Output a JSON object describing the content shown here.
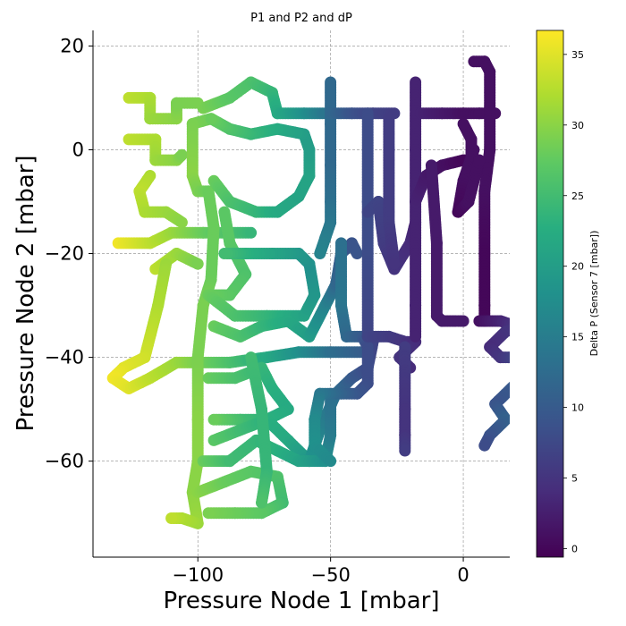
{
  "chart_data": {
    "type": "scatter",
    "title": "P1 and P2 and dP",
    "xlabel": "Pressure Node 1 [mbar]",
    "ylabel": "Pressure Node 2 [mbar]",
    "xlim": [
      -139.5,
      17.5
    ],
    "ylim": [
      -78.5,
      23
    ],
    "xticks": [
      -100,
      -50,
      0
    ],
    "xtick_labels": [
      "−100",
      "−50",
      "0"
    ],
    "yticks": [
      20,
      0,
      -20,
      -40,
      -60
    ],
    "ytick_labels": [
      "20",
      "0",
      "−20",
      "−40",
      "−60"
    ],
    "grid": true,
    "colorbar": {
      "label": "Delta P (Sensor 7 [mbar])",
      "range": [
        -0.6,
        36.7
      ],
      "ticks": [
        0,
        5,
        10,
        15,
        20,
        25,
        30,
        35
      ],
      "tick_labels": [
        "0",
        "5",
        "10",
        "15",
        "20",
        "25",
        "30",
        "35"
      ],
      "colormap": "viridis"
    },
    "paths": [
      {
        "points": [
          [
            -126,
            10
          ],
          [
            -118,
            10
          ],
          [
            -118,
            6
          ],
          [
            -108,
            6
          ],
          [
            -108,
            9
          ],
          [
            -100,
            9
          ]
        ],
        "c": [
          33,
          32,
          31,
          30,
          29,
          29
        ]
      },
      {
        "points": [
          [
            -126,
            2
          ],
          [
            -116,
            2
          ],
          [
            -116,
            -2
          ],
          [
            -108,
            -2
          ],
          [
            -106,
            -1
          ]
        ],
        "c": [
          33,
          32,
          31,
          30,
          29
        ]
      },
      {
        "points": [
          [
            -118,
            -5
          ],
          [
            -122,
            -8
          ],
          [
            -120,
            -12
          ],
          [
            -112,
            -12
          ],
          [
            -106,
            -14
          ]
        ],
        "c": [
          32,
          33,
          32,
          31,
          30
        ]
      },
      {
        "points": [
          [
            -130,
            -18
          ],
          [
            -118,
            -18
          ],
          [
            -110,
            -16
          ],
          [
            -98,
            -16
          ],
          [
            -88,
            -16
          ],
          [
            -80,
            -16
          ]
        ],
        "c": [
          36,
          33,
          31,
          28,
          26,
          24
        ]
      },
      {
        "points": [
          [
            -116,
            -23
          ],
          [
            -108,
            -20
          ],
          [
            -100,
            -22
          ]
        ],
        "c": [
          33,
          31,
          29
        ]
      },
      {
        "points": [
          [
            -112,
            -22
          ],
          [
            -115,
            -30
          ],
          [
            -120,
            -40
          ],
          [
            -128,
            -42
          ],
          [
            -132,
            -44
          ],
          [
            -126,
            -46
          ],
          [
            -118,
            -44
          ],
          [
            -108,
            -41
          ],
          [
            -100,
            -41
          ],
          [
            -88,
            -41
          ],
          [
            -74,
            -40
          ],
          [
            -62,
            -39
          ],
          [
            -50,
            -39
          ],
          [
            -36,
            -39
          ]
        ],
        "c": [
          31,
          32,
          34,
          35,
          36,
          35,
          33,
          31,
          29,
          26,
          22,
          18,
          13,
          10
        ]
      },
      {
        "points": [
          [
            -95,
            6
          ],
          [
            -102,
            5
          ],
          [
            -102,
            -5
          ],
          [
            -100,
            -8
          ],
          [
            -96,
            -8
          ],
          [
            -94,
            -15
          ],
          [
            -95,
            -25
          ],
          [
            -98,
            -30
          ],
          [
            -100,
            -40
          ],
          [
            -100,
            -52
          ],
          [
            -100,
            -60
          ],
          [
            -102,
            -66
          ],
          [
            -100,
            -72
          ],
          [
            -106,
            -71
          ],
          [
            -110,
            -71
          ]
        ],
        "c": [
          28,
          29,
          30,
          29,
          28,
          28,
          28,
          29,
          29,
          30,
          30,
          30,
          31,
          32,
          33
        ]
      },
      {
        "points": [
          [
            -94,
            -6
          ],
          [
            -88,
            -10
          ],
          [
            -78,
            -12
          ],
          [
            -70,
            -12
          ],
          [
            -62,
            -9
          ],
          [
            -58,
            -5
          ],
          [
            -58,
            0
          ],
          [
            -60,
            3
          ],
          [
            -70,
            4
          ],
          [
            -80,
            3
          ],
          [
            -88,
            4
          ],
          [
            -95,
            6
          ]
        ],
        "c": [
          28,
          26,
          24,
          22,
          21,
          21,
          20,
          20,
          22,
          24,
          26,
          28
        ]
      },
      {
        "points": [
          [
            -98,
            8
          ],
          [
            -88,
            10
          ],
          [
            -80,
            13
          ],
          [
            -72,
            11
          ],
          [
            -70,
            7
          ],
          [
            -60,
            7
          ],
          [
            -52,
            7
          ]
        ],
        "c": [
          29,
          27,
          26,
          24,
          22,
          18,
          14
        ]
      },
      {
        "points": [
          [
            -90,
            -12
          ],
          [
            -88,
            -18
          ],
          [
            -82,
            -24
          ],
          [
            -88,
            -28
          ],
          [
            -96,
            -28
          ],
          [
            -86,
            -32
          ],
          [
            -74,
            -32
          ],
          [
            -60,
            -32
          ],
          [
            -56,
            -28
          ],
          [
            -58,
            -22
          ],
          [
            -62,
            -20
          ],
          [
            -72,
            -20
          ],
          [
            -82,
            -20
          ],
          [
            -90,
            -20
          ]
        ],
        "c": [
          27,
          27,
          26,
          27,
          28,
          26,
          24,
          21,
          19,
          18,
          19,
          21,
          23,
          25
        ]
      },
      {
        "points": [
          [
            -94,
            -34
          ],
          [
            -84,
            -36
          ],
          [
            -76,
            -34
          ],
          [
            -66,
            -33
          ],
          [
            -58,
            -36
          ],
          [
            -52,
            -30
          ],
          [
            -48,
            -26
          ],
          [
            -46,
            -20
          ],
          [
            -42,
            -18
          ],
          [
            -40,
            -20
          ]
        ],
        "c": [
          28,
          26,
          24,
          22,
          20,
          16,
          12,
          10,
          9,
          9
        ]
      },
      {
        "points": [
          [
            -96,
            -44
          ],
          [
            -86,
            -44
          ],
          [
            -76,
            -42
          ],
          [
            -72,
            -46
          ],
          [
            -66,
            -50
          ],
          [
            -74,
            -52
          ],
          [
            -84,
            -52
          ],
          [
            -94,
            -52
          ]
        ],
        "c": [
          28,
          26,
          24,
          23,
          22,
          23,
          25,
          28
        ]
      },
      {
        "points": [
          [
            -94,
            -56
          ],
          [
            -84,
            -54
          ],
          [
            -74,
            -52
          ],
          [
            -66,
            -56
          ],
          [
            -58,
            -60
          ],
          [
            -54,
            -54
          ],
          [
            -48,
            -47
          ],
          [
            -42,
            -44
          ],
          [
            -36,
            -42
          ],
          [
            -34,
            -37
          ]
        ],
        "c": [
          27,
          25,
          23,
          22,
          19,
          16,
          13,
          10,
          8,
          7
        ]
      },
      {
        "points": [
          [
            -98,
            -60
          ],
          [
            -88,
            -60
          ],
          [
            -78,
            -56
          ],
          [
            -70,
            -58
          ],
          [
            -62,
            -60
          ],
          [
            -52,
            -60
          ],
          [
            -50,
            -55
          ],
          [
            -50,
            -47
          ]
        ],
        "c": [
          28,
          25,
          24,
          23,
          21,
          18,
          15,
          13
        ]
      },
      {
        "points": [
          [
            -100,
            -66
          ],
          [
            -90,
            -64
          ],
          [
            -80,
            -62
          ],
          [
            -70,
            -63
          ],
          [
            -68,
            -68
          ],
          [
            -76,
            -70
          ],
          [
            -86,
            -70
          ],
          [
            -96,
            -70
          ]
        ],
        "c": [
          30,
          28,
          27,
          26,
          25,
          27,
          28,
          29
        ]
      },
      {
        "points": [
          [
            -80,
            -40
          ],
          [
            -76,
            -50
          ],
          [
            -74,
            -62
          ],
          [
            -76,
            -68
          ]
        ],
        "c": [
          25,
          24,
          24,
          26
        ]
      },
      {
        "points": [
          [
            -50,
            13
          ],
          [
            -50,
            5
          ],
          [
            -50,
            -3
          ],
          [
            -50,
            -10
          ],
          [
            -50,
            -14
          ],
          [
            -52,
            -17
          ],
          [
            -54,
            -20
          ]
        ],
        "c": [
          12,
          12,
          12,
          13,
          14,
          15,
          16
        ]
      },
      {
        "points": [
          [
            -50,
            7
          ],
          [
            -42,
            7
          ],
          [
            -34,
            7
          ],
          [
            -26,
            7
          ]
        ],
        "c": [
          12,
          9,
          7,
          6
        ]
      },
      {
        "points": [
          [
            -46,
            -18
          ],
          [
            -46,
            -30
          ],
          [
            -44,
            -36
          ],
          [
            -38,
            -36
          ],
          [
            -36,
            -38
          ],
          [
            -36,
            -45
          ],
          [
            -40,
            -47
          ],
          [
            -46,
            -47
          ],
          [
            -54,
            -47
          ],
          [
            -56,
            -52
          ],
          [
            -56,
            -57
          ],
          [
            -50,
            -60
          ]
        ],
        "c": [
          13,
          14,
          12,
          10,
          8,
          8,
          9,
          11,
          14,
          17,
          18,
          17
        ]
      },
      {
        "points": [
          [
            -36,
            7
          ],
          [
            -36,
            -10
          ],
          [
            -36,
            -20
          ],
          [
            -36,
            -36
          ],
          [
            -28,
            -36
          ],
          [
            -22,
            -37
          ],
          [
            -18,
            -37
          ],
          [
            -24,
            -40
          ],
          [
            -20,
            -42
          ]
        ],
        "c": [
          8,
          8,
          8,
          7,
          6,
          5,
          4,
          5,
          4
        ]
      },
      {
        "points": [
          [
            -36,
            -12
          ],
          [
            -32,
            -10
          ],
          [
            -30,
            -18
          ],
          [
            -26,
            -23
          ],
          [
            -20,
            -18
          ],
          [
            -18,
            -14
          ]
        ],
        "c": [
          7,
          7,
          6,
          5,
          4,
          3
        ]
      },
      {
        "points": [
          [
            -28,
            6
          ],
          [
            -28,
            0
          ],
          [
            -28,
            -14
          ],
          [
            -26,
            -22
          ]
        ],
        "c": [
          6,
          6,
          6,
          5
        ]
      },
      {
        "points": [
          [
            -22,
            -38
          ],
          [
            -22,
            -50
          ],
          [
            -22,
            -55
          ],
          [
            -22,
            -58
          ]
        ],
        "c": [
          6,
          5,
          5,
          6
        ]
      },
      {
        "points": [
          [
            -18,
            13
          ],
          [
            -18,
            0
          ],
          [
            -18,
            -10
          ],
          [
            -18,
            -20
          ],
          [
            -18,
            -30
          ],
          [
            -18,
            -36
          ]
        ],
        "c": [
          3,
          3,
          3,
          3,
          3,
          3
        ]
      },
      {
        "points": [
          [
            -18,
            -10
          ],
          [
            -14,
            -5
          ],
          [
            -8,
            -3
          ],
          [
            0,
            -2
          ],
          [
            6,
            -2
          ]
        ],
        "c": [
          3,
          2,
          1,
          0,
          0
        ]
      },
      {
        "points": [
          [
            -16,
            7
          ],
          [
            -8,
            7
          ],
          [
            0,
            7
          ],
          [
            6,
            7
          ],
          [
            12,
            7
          ]
        ],
        "c": [
          3,
          2,
          1,
          1,
          1
        ]
      },
      {
        "points": [
          [
            -12,
            -3
          ],
          [
            -10,
            -18
          ],
          [
            -10,
            -32
          ],
          [
            -8,
            -33
          ],
          [
            0,
            -33
          ]
        ],
        "c": [
          2,
          2,
          2,
          2,
          2
        ]
      },
      {
        "points": [
          [
            3,
            -1
          ],
          [
            3,
            2
          ],
          [
            0,
            5
          ]
        ],
        "c": [
          1,
          1,
          1
        ]
      },
      {
        "points": [
          [
            4,
            17
          ],
          [
            8,
            17
          ],
          [
            10,
            15
          ],
          [
            10,
            8
          ],
          [
            10,
            0
          ],
          [
            8,
            -8
          ],
          [
            8,
            -20
          ],
          [
            8,
            -30
          ],
          [
            8,
            -33
          ]
        ],
        "c": [
          1,
          1,
          1,
          1,
          1,
          1,
          0,
          0,
          0
        ]
      },
      {
        "points": [
          [
            6,
            -33
          ],
          [
            14,
            -33
          ],
          [
            20,
            -34
          ],
          [
            24,
            -34
          ],
          [
            16,
            -35
          ],
          [
            10,
            -38
          ],
          [
            14,
            -40
          ],
          [
            20,
            -40
          ],
          [
            24,
            -42
          ],
          [
            20,
            -45
          ],
          [
            12,
            -49
          ],
          [
            16,
            -52
          ],
          [
            10,
            -55
          ],
          [
            8,
            -57
          ]
        ],
        "c": [
          1,
          3,
          5,
          6,
          5,
          4,
          5,
          7,
          9,
          10,
          9,
          11,
          9,
          8
        ]
      },
      {
        "points": [
          [
            4,
            0
          ],
          [
            0,
            -6
          ],
          [
            -2,
            -12
          ],
          [
            2,
            -10
          ],
          [
            6,
            -2
          ]
        ],
        "c": [
          1,
          1,
          0,
          1,
          1
        ]
      }
    ]
  }
}
